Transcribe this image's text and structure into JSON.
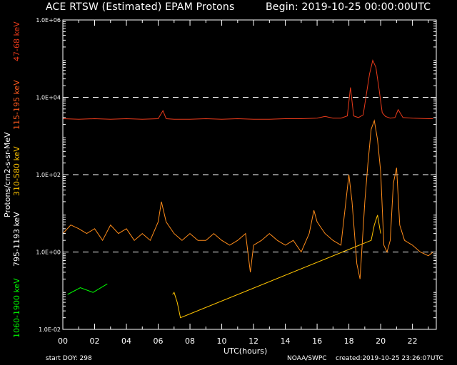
{
  "header": {
    "title": "ACE RTSW (Estimated) EPAM Protons",
    "begin": "Begin: 2019-10-25 00:00:00UTC"
  },
  "footer": {
    "start_doy": "start DOY:  298",
    "credit": "NOAA/SWPC",
    "created": "created:2019-10-25 23:26:07UTC"
  },
  "colors": {
    "background": "#000000",
    "axes": "#ffffff",
    "ch_47_68": "#e83a1a",
    "ch_115_195": "#ff5a1e",
    "ch_310_580": "#ffc400",
    "ch_795_1193": "#ff8c1a",
    "ch_1060_1900": "#00ff00"
  },
  "chart_data": {
    "type": "line",
    "title": "ACE RTSW (Estimated) EPAM Protons",
    "xlabel": "UTC(hours)",
    "ylabel": "Protons/cm2-s-sr-MeV",
    "xlim": [
      0,
      23.5
    ],
    "ylim": [
      0.01,
      1000000
    ],
    "yscale": "log",
    "grid": "dashed horizontal at 1, 100, 10000",
    "x_ticks": [
      "00",
      "02",
      "04",
      "06",
      "08",
      "10",
      "12",
      "14",
      "16",
      "18",
      "20",
      "22"
    ],
    "y_ticks": [
      "1.0E-02",
      "1.0E+00",
      "1.0E+02",
      "1.0E+04",
      "1.0E+06"
    ],
    "channel_labels": [
      {
        "text": "47-68 keV",
        "color": "#e83a1a"
      },
      {
        "text": "115-195 keV",
        "color": "#ff5a1e"
      },
      {
        "text": "310-580 keV",
        "color": "#ffc400"
      },
      {
        "text": "795-1193 keV",
        "color": "#ffffff"
      },
      {
        "text": "1060-1900 keV",
        "color": "#00ff00"
      }
    ],
    "series": [
      {
        "name": "47-68 keV",
        "color": "#e83a1a",
        "x": [
          0,
          1,
          2,
          3,
          4,
          5,
          6,
          6.3,
          6.5,
          7,
          8,
          9,
          10,
          11,
          12,
          13,
          14,
          15,
          16,
          16.5,
          17,
          17.5,
          17.9,
          18.1,
          18.3,
          18.6,
          18.9,
          19.1,
          19.3,
          19.5,
          19.7,
          19.9,
          20.1,
          20.3,
          20.6,
          20.9,
          21.1,
          21.4,
          22,
          23,
          23.3
        ],
        "y": [
          2800,
          2700,
          2800,
          2700,
          2800,
          2700,
          2800,
          4500,
          2800,
          2700,
          2700,
          2800,
          2700,
          2800,
          2700,
          2700,
          2800,
          2800,
          2900,
          3200,
          2900,
          2900,
          3300,
          18000,
          3300,
          3000,
          3500,
          12000,
          40000,
          90000,
          60000,
          16000,
          4000,
          3200,
          2900,
          3000,
          4800,
          3000,
          2900,
          2800,
          2800
        ]
      },
      {
        "name": "310-580 keV",
        "color": "#ffc400",
        "x": [
          6.9,
          7.0,
          7.2,
          7.4,
          19.4,
          19.6,
          19.8,
          20.0
        ],
        "y": [
          0.08,
          0.09,
          0.05,
          0.02,
          2,
          5,
          9,
          3
        ]
      },
      {
        "name": "795-1193 keV",
        "color": "#ff8c1a",
        "x": [
          0,
          0.5,
          1,
          1.5,
          2,
          2.5,
          3,
          3.5,
          4,
          4.5,
          5,
          5.5,
          6,
          6.2,
          6.5,
          7,
          7.5,
          8,
          8.5,
          9,
          9.5,
          10,
          10.5,
          11,
          11.5,
          11.8,
          12,
          12.5,
          13,
          13.5,
          14,
          14.5,
          15,
          15.5,
          15.8,
          16,
          16.5,
          17,
          17.5,
          18,
          18.2,
          18.5,
          18.7,
          19,
          19.2,
          19.4,
          19.6,
          19.8,
          20,
          20.2,
          20.4,
          20.6,
          20.8,
          21,
          21.2,
          21.5,
          22,
          22.5,
          23,
          23.3
        ],
        "y": [
          3,
          5,
          4,
          3,
          4,
          2,
          5,
          3,
          4,
          2,
          3,
          2,
          6,
          20,
          6,
          3,
          2,
          3,
          2,
          2,
          3,
          2,
          1.5,
          2,
          3,
          0.3,
          1.5,
          2,
          3,
          2,
          1.5,
          2,
          1,
          3,
          12,
          6,
          3,
          2,
          1.5,
          100,
          20,
          0.5,
          0.2,
          20,
          200,
          1500,
          2500,
          800,
          120,
          1.5,
          1,
          2,
          60,
          150,
          5,
          2,
          1.5,
          1,
          0.8,
          1
        ]
      },
      {
        "name": "1060-1900 keV",
        "color": "#00ff00",
        "x": [
          0.3,
          1.1,
          1.9,
          2.8
        ],
        "y": [
          0.08,
          0.12,
          0.09,
          0.15
        ]
      }
    ]
  }
}
